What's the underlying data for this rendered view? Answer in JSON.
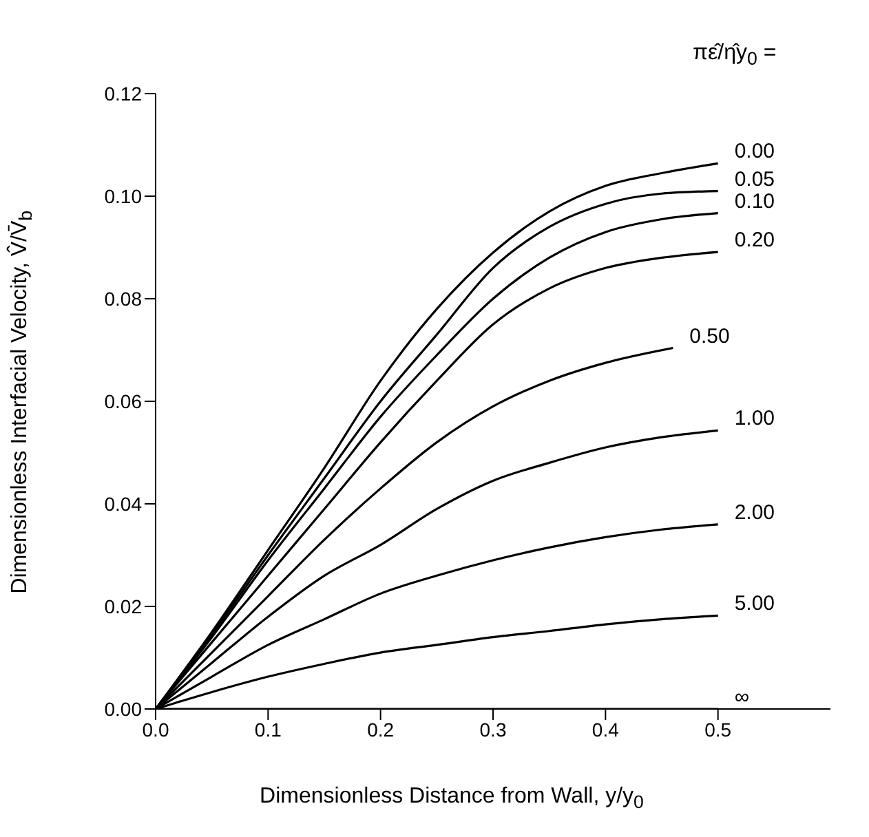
{
  "chart_data": {
    "type": "line",
    "xlabel": "Dimensionless Distance from Wall, y/y$_{0}$",
    "ylabel": "Dimensionless Interfacial Velocity, V̂/V̄$_{b}$",
    "legend_title": "πε̂/η̂y$_{0}$ =",
    "legend": false,
    "grid": false,
    "marker": "none",
    "line_style": "solid",
    "xlim": [
      0,
      0.6
    ],
    "ylim": [
      0,
      0.12
    ],
    "xticks": [
      {
        "value": 0,
        "label": "0.0"
      },
      {
        "value": 0.1,
        "label": "0.1"
      },
      {
        "value": 0.2,
        "label": "0.2"
      },
      {
        "value": 0.3,
        "label": "0.3"
      },
      {
        "value": 0.4,
        "label": "0.4"
      },
      {
        "value": 0.5,
        "label": "0.5"
      }
    ],
    "yticks": [
      {
        "value": 0,
        "label": "0.00"
      },
      {
        "value": 0.02,
        "label": "0.02"
      },
      {
        "value": 0.04,
        "label": "0.04"
      },
      {
        "value": 0.06,
        "label": "0.06"
      },
      {
        "value": 0.08,
        "label": "0.08"
      },
      {
        "value": 0.1,
        "label": "0.10"
      },
      {
        "value": 0.12,
        "label": "0.12"
      }
    ],
    "series": [
      {
        "name": "0.00",
        "color": "#000000",
        "x": [
          0,
          0.05,
          0.1,
          0.15,
          0.2,
          0.25,
          0.3,
          0.35,
          0.4,
          0.45,
          0.5
        ],
        "values": [
          0,
          0.015,
          0.031,
          0.047,
          0.064,
          0.078,
          0.089,
          0.097,
          0.102,
          0.1045,
          0.1064
        ]
      },
      {
        "name": "0.05",
        "color": "#000000",
        "x": [
          0,
          0.05,
          0.1,
          0.15,
          0.2,
          0.25,
          0.3,
          0.35,
          0.4,
          0.45,
          0.5
        ],
        "values": [
          0,
          0.0145,
          0.03,
          0.045,
          0.06,
          0.073,
          0.086,
          0.094,
          0.0985,
          0.1005,
          0.101
        ]
      },
      {
        "name": "0.10",
        "color": "#000000",
        "x": [
          0,
          0.05,
          0.1,
          0.15,
          0.2,
          0.25,
          0.3,
          0.35,
          0.4,
          0.45,
          0.5
        ],
        "values": [
          0,
          0.014,
          0.029,
          0.043,
          0.057,
          0.069,
          0.08,
          0.088,
          0.093,
          0.0955,
          0.0967
        ]
      },
      {
        "name": "0.20",
        "color": "#000000",
        "x": [
          0,
          0.05,
          0.1,
          0.15,
          0.2,
          0.25,
          0.3,
          0.35,
          0.4,
          0.45,
          0.5
        ],
        "values": [
          0,
          0.013,
          0.026,
          0.039,
          0.052,
          0.064,
          0.075,
          0.082,
          0.086,
          0.088,
          0.0891
        ]
      },
      {
        "name": "0.50",
        "color": "#000000",
        "x": [
          0,
          0.05,
          0.1,
          0.15,
          0.2,
          0.25,
          0.3,
          0.35,
          0.4,
          0.46
        ],
        "values": [
          0,
          0.011,
          0.022,
          0.033,
          0.043,
          0.052,
          0.059,
          0.064,
          0.0675,
          0.0704
        ]
      },
      {
        "name": "1.00",
        "color": "#000000",
        "x": [
          0,
          0.05,
          0.1,
          0.15,
          0.2,
          0.25,
          0.3,
          0.35,
          0.4,
          0.45,
          0.5
        ],
        "values": [
          0,
          0.009,
          0.018,
          0.026,
          0.032,
          0.039,
          0.0445,
          0.048,
          0.051,
          0.053,
          0.0543
        ]
      },
      {
        "name": "2.00",
        "color": "#000000",
        "x": [
          0,
          0.05,
          0.1,
          0.15,
          0.2,
          0.25,
          0.3,
          0.35,
          0.4,
          0.45,
          0.5
        ],
        "values": [
          0,
          0.0063,
          0.0125,
          0.0175,
          0.0225,
          0.026,
          0.029,
          0.0315,
          0.0335,
          0.035,
          0.036
        ]
      },
      {
        "name": "5.00",
        "color": "#000000",
        "x": [
          0,
          0.05,
          0.1,
          0.15,
          0.2,
          0.25,
          0.3,
          0.35,
          0.4,
          0.45,
          0.5
        ],
        "values": [
          0,
          0.0033,
          0.0063,
          0.0088,
          0.011,
          0.0125,
          0.014,
          0.0152,
          0.0165,
          0.0175,
          0.0182
        ]
      },
      {
        "name": "∞",
        "color": "#000000",
        "x": [
          0,
          0.5
        ],
        "values": [
          0,
          0
        ]
      }
    ]
  }
}
